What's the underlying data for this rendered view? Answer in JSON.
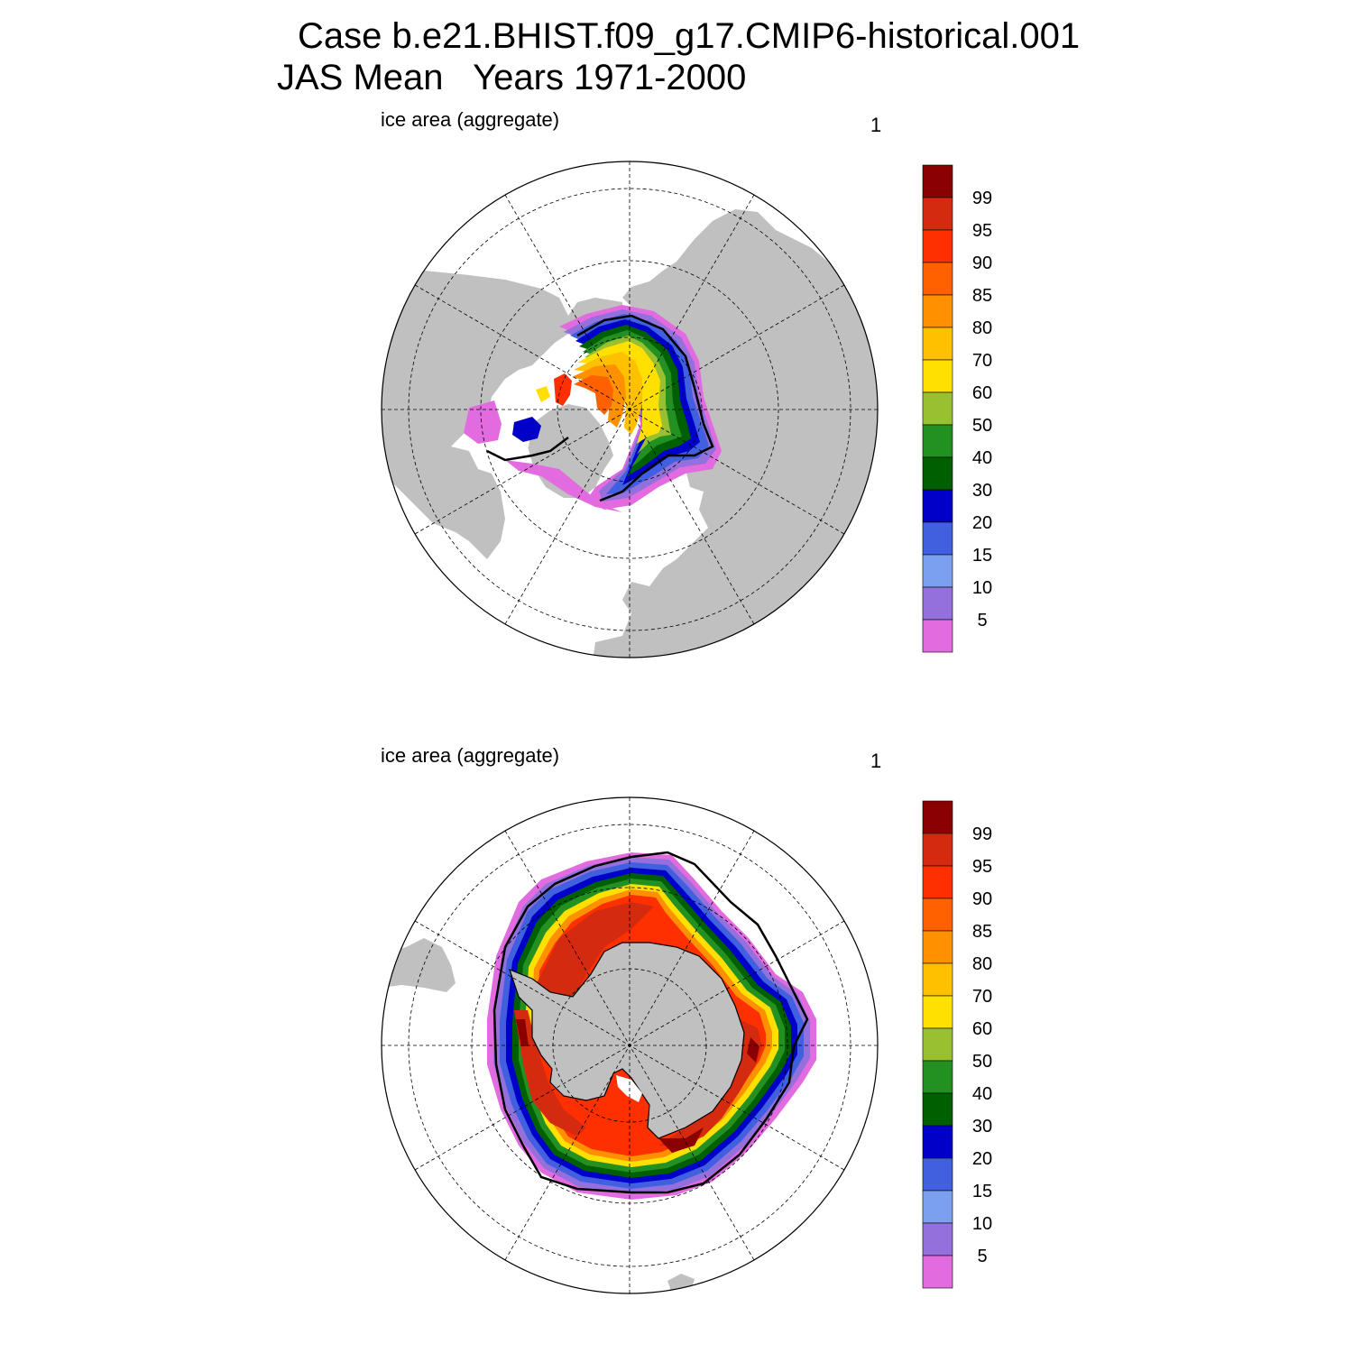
{
  "title_line1": "Case b.e21.BHIST.f09_g17.CMIP6-historical.001",
  "title_line2": "JAS Mean   Years 1971-2000",
  "panels": [
    {
      "left_label": "ice area  (aggregate)",
      "right_label": "1",
      "hemisphere": "north"
    },
    {
      "left_label": "ice area  (aggregate)",
      "right_label": "1",
      "hemisphere": "south"
    }
  ],
  "colorbar": {
    "labels": [
      "99",
      "95",
      "90",
      "85",
      "80",
      "70",
      "60",
      "50",
      "40",
      "30",
      "20",
      "15",
      "10",
      "5"
    ],
    "colors": [
      "#8b0000",
      "#d42a10",
      "#ff3000",
      "#ff6000",
      "#ff9000",
      "#ffc000",
      "#ffe000",
      "#98c030",
      "#229122",
      "#006000",
      "#0000c8",
      "#4060e0",
      "#7ca0f0",
      "#9370db",
      "#e26be0"
    ]
  },
  "colors": {
    "land": "#c0c0c0",
    "ocean": "#ffffff",
    "outline": "#000000"
  }
}
